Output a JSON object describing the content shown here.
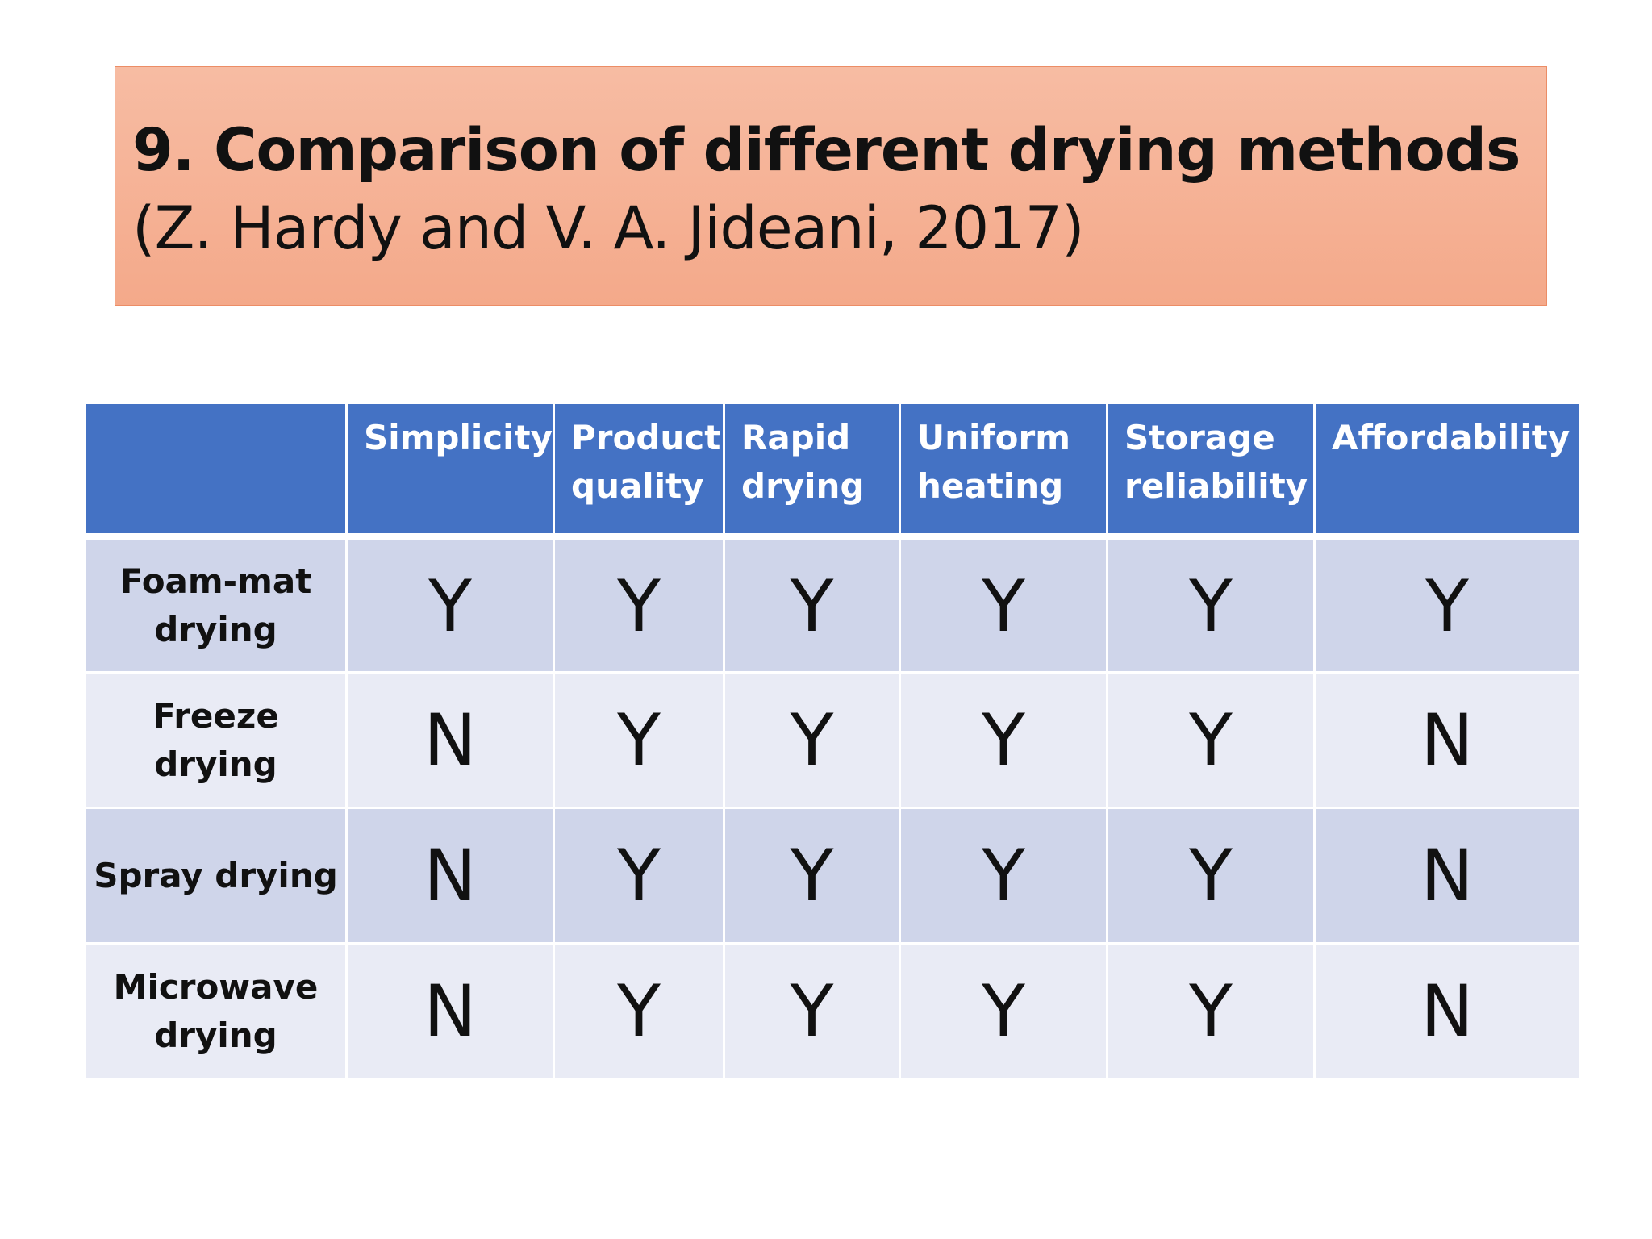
{
  "slide": {
    "title_main": "9. Comparison of different drying methods",
    "title_citation": "(Z. Hardy and V. A. Jideani, 2017)"
  },
  "table": {
    "corner": "",
    "columns": [
      "Simplicity",
      "Product quality",
      "Rapid drying",
      "Uniform heating",
      "Storage reliability",
      "Affordability"
    ],
    "rows": [
      {
        "method": "Foam-mat drying",
        "values": [
          "Y",
          "Y",
          "Y",
          "Y",
          "Y",
          "Y"
        ]
      },
      {
        "method": "Freeze drying",
        "values": [
          "N",
          "Y",
          "Y",
          "Y",
          "Y",
          "N"
        ]
      },
      {
        "method": "Spray drying",
        "values": [
          "N",
          "Y",
          "Y",
          "Y",
          "Y",
          "N"
        ]
      },
      {
        "method": "Microwave drying",
        "values": [
          "N",
          "Y",
          "Y",
          "Y",
          "Y",
          "N"
        ]
      }
    ]
  },
  "colors": {
    "title_fill": "#f4a98a",
    "header_fill": "#4472c4",
    "row_band_dark": "#cfd5ea",
    "row_band_light": "#e9ebf5"
  }
}
